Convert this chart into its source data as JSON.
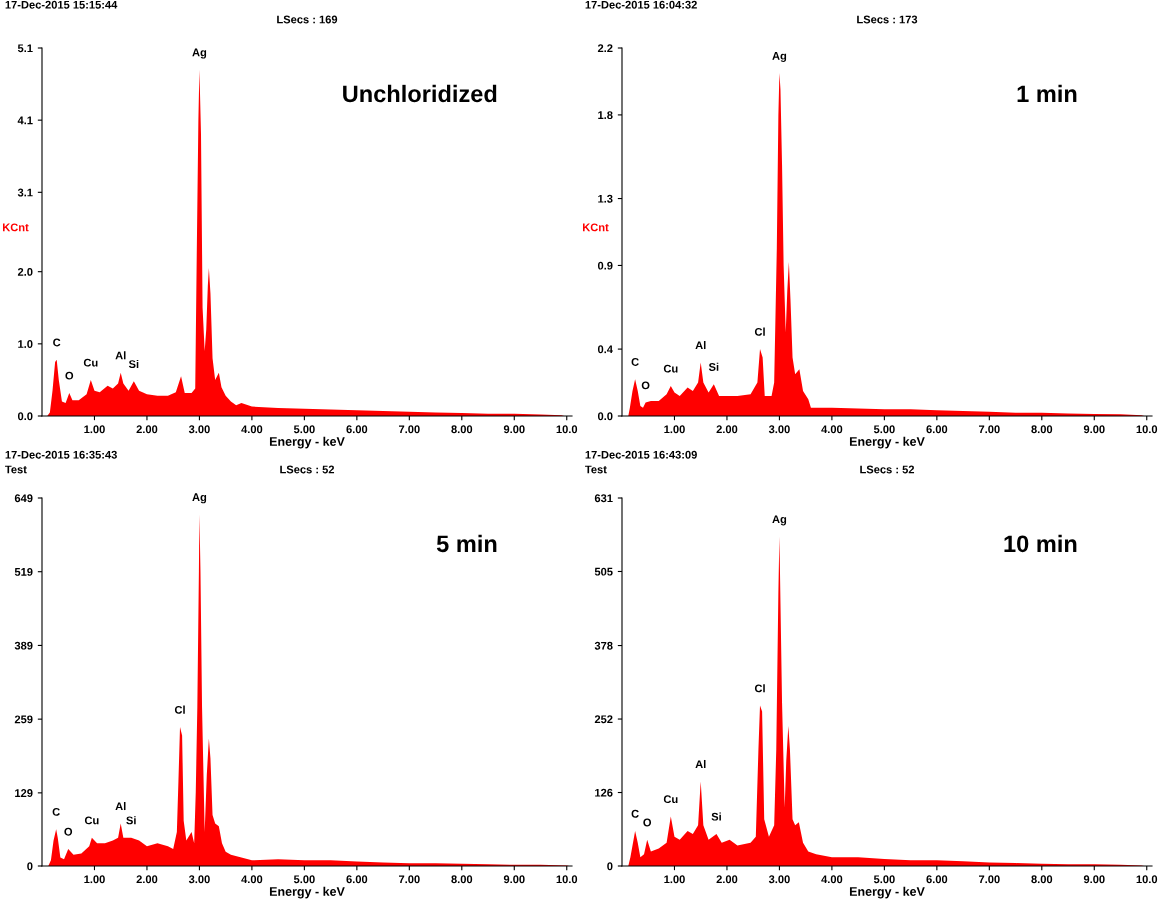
{
  "chart_data": [
    {
      "type": "area",
      "title": "17-Dec-2015 15:15:44",
      "subtitle": "LSecs : 169",
      "xlabel": "Energy - keV",
      "ylabel": "KCnt",
      "color": "#ff0000",
      "xlim": [
        0,
        10.1
      ],
      "xticks": [
        {
          "value": 1,
          "label": "1.00"
        },
        {
          "value": 2,
          "label": "2.00"
        },
        {
          "value": 3,
          "label": "3.00"
        },
        {
          "value": 4,
          "label": "4.00"
        },
        {
          "value": 5,
          "label": "5.00"
        },
        {
          "value": 6,
          "label": "6.00"
        },
        {
          "value": 7,
          "label": "7.00"
        },
        {
          "value": 8,
          "label": "8.00"
        },
        {
          "value": 9,
          "label": "9.00"
        },
        {
          "value": 10,
          "label": "10.0"
        }
      ],
      "ylim": [
        0,
        5.1
      ],
      "yticks": [
        {
          "value": 0,
          "label": "0.0"
        },
        {
          "value": 1.0,
          "label": "1.0"
        },
        {
          "value": 2.0,
          "label": "2.0"
        },
        3.1,
        4.1,
        5.1
      ],
      "x": [
        0.1,
        0.15,
        0.2,
        0.25,
        0.28,
        0.32,
        0.38,
        0.45,
        0.52,
        0.58,
        0.7,
        0.85,
        0.93,
        1.0,
        1.1,
        1.25,
        1.35,
        1.45,
        1.5,
        1.55,
        1.65,
        1.75,
        1.85,
        2.0,
        2.2,
        2.4,
        2.55,
        2.65,
        2.72,
        2.85,
        2.92,
        2.95,
        2.98,
        3.0,
        3.03,
        3.06,
        3.1,
        3.13,
        3.16,
        3.18,
        3.21,
        3.25,
        3.3,
        3.37,
        3.42,
        3.5,
        3.6,
        3.7,
        3.8,
        4.0,
        4.5,
        5.0,
        5.5,
        6.0,
        6.5,
        7.0,
        7.5,
        8.0,
        8.5,
        9.0,
        9.5,
        9.9,
        9.95
      ],
      "values": [
        0,
        0.05,
        0.35,
        0.75,
        0.78,
        0.5,
        0.2,
        0.18,
        0.32,
        0.22,
        0.22,
        0.3,
        0.5,
        0.35,
        0.33,
        0.42,
        0.38,
        0.45,
        0.6,
        0.45,
        0.35,
        0.48,
        0.35,
        0.3,
        0.28,
        0.28,
        0.33,
        0.55,
        0.32,
        0.32,
        0.38,
        2.3,
        4.1,
        4.8,
        3.9,
        1.5,
        0.9,
        1.2,
        1.8,
        2.05,
        1.7,
        0.8,
        0.5,
        0.6,
        0.4,
        0.28,
        0.2,
        0.15,
        0.18,
        0.13,
        0.11,
        0.1,
        0.09,
        0.08,
        0.07,
        0.06,
        0.05,
        0.04,
        0.03,
        0.03,
        0.02,
        0.01,
        0
      ],
      "annotations": [
        "Unchloridized",
        {
          "text": "Ag",
          "x": 3.0,
          "y": 4.8
        },
        {
          "text": "C",
          "x": 0.28,
          "y": 0.78
        },
        {
          "text": "O",
          "x": 0.52,
          "y": 0.32
        },
        {
          "text": "Cu",
          "x": 0.93,
          "y": 0.5
        },
        {
          "text": "Al",
          "x": 1.5,
          "y": 0.6
        },
        {
          "text": "Si",
          "x": 1.75,
          "y": 0.48
        }
      ]
    },
    {
      "type": "area",
      "title": "17-Dec-2015 16:04:32",
      "subtitle": "LSecs : 173",
      "xlabel": "Energy - keV",
      "ylabel": "KCnt",
      "color": "#ff0000",
      "xlim": [
        0,
        10.1
      ],
      "xticks": [
        {
          "value": 1,
          "label": "1.00"
        },
        {
          "value": 2,
          "label": "2.00"
        },
        {
          "value": 3,
          "label": "3.00"
        },
        {
          "value": 4,
          "label": "4.00"
        },
        {
          "value": 5,
          "label": "5.00"
        },
        {
          "value": 6,
          "label": "6.00"
        },
        {
          "value": 7,
          "label": "7.00"
        },
        {
          "value": 8,
          "label": "8.00"
        },
        {
          "value": 9,
          "label": "9.00"
        },
        {
          "value": 10,
          "label": "10.0"
        }
      ],
      "ylim": [
        0,
        2.2
      ],
      "yticks": [
        {
          "value": 0,
          "label": "0.0"
        },
        0.4,
        0.9,
        1.3,
        1.8,
        2.2
      ],
      "x": [
        0.12,
        0.15,
        0.2,
        0.25,
        0.3,
        0.35,
        0.4,
        0.45,
        0.55,
        0.7,
        0.85,
        0.93,
        1.0,
        1.1,
        1.25,
        1.35,
        1.45,
        1.5,
        1.55,
        1.65,
        1.75,
        1.85,
        2.0,
        2.2,
        2.45,
        2.58,
        2.63,
        2.68,
        2.72,
        2.85,
        2.9,
        2.95,
        2.98,
        3.0,
        3.02,
        3.05,
        3.08,
        3.12,
        3.15,
        3.18,
        3.21,
        3.25,
        3.3,
        3.38,
        3.45,
        3.55,
        3.6,
        3.8,
        4.0,
        4.5,
        5.0,
        5.5,
        6.0,
        6.5,
        7.0,
        7.5,
        8.0,
        8.5,
        9.0,
        9.5,
        9.9,
        9.95
      ],
      "values": [
        0,
        0.05,
        0.15,
        0.22,
        0.15,
        0.06,
        0.05,
        0.08,
        0.09,
        0.09,
        0.13,
        0.18,
        0.14,
        0.12,
        0.17,
        0.15,
        0.2,
        0.32,
        0.2,
        0.14,
        0.19,
        0.12,
        0.12,
        0.12,
        0.13,
        0.2,
        0.4,
        0.35,
        0.12,
        0.12,
        0.2,
        1.0,
        1.8,
        2.05,
        1.95,
        1.5,
        0.9,
        0.5,
        0.75,
        0.92,
        0.7,
        0.35,
        0.25,
        0.28,
        0.15,
        0.1,
        0.05,
        0.05,
        0.05,
        0.045,
        0.04,
        0.04,
        0.035,
        0.03,
        0.025,
        0.02,
        0.02,
        0.015,
        0.012,
        0.01,
        0.005,
        0
      ],
      "annotations": [
        "1 min",
        {
          "text": "Ag",
          "x": 3.0,
          "y": 2.05
        },
        {
          "text": "C",
          "x": 0.25,
          "y": 0.22
        },
        {
          "text": "O",
          "x": 0.45,
          "y": 0.08
        },
        {
          "text": "Cu",
          "x": 0.93,
          "y": 0.18
        },
        {
          "text": "Al",
          "x": 1.5,
          "y": 0.32
        },
        {
          "text": "Si",
          "x": 1.75,
          "y": 0.19
        },
        {
          "text": "Cl",
          "x": 2.63,
          "y": 0.4
        }
      ]
    },
    {
      "type": "area",
      "title": "17-Dec-2015 16:35:43",
      "subtitle": "LSecs : 52",
      "xlabel": "Energy - keV",
      "color": "#ff0000",
      "xlim": [
        0,
        10.1
      ],
      "xticks": [
        {
          "value": 1,
          "label": "1.00"
        },
        {
          "value": 2,
          "label": "2.00"
        },
        {
          "value": 3,
          "label": "3.00"
        },
        {
          "value": 4,
          "label": "4.00"
        },
        {
          "value": 5,
          "label": "5.00"
        },
        {
          "value": 6,
          "label": "6.00"
        },
        {
          "value": 7,
          "label": "7.00"
        },
        {
          "value": 8,
          "label": "8.00"
        },
        {
          "value": 9,
          "label": "9.00"
        },
        {
          "value": 10,
          "label": "10.0"
        }
      ],
      "ylim": [
        0,
        649
      ],
      "yticks": [
        0,
        129,
        259,
        389,
        519,
        649
      ],
      "x": [
        0.12,
        0.17,
        0.22,
        0.27,
        0.3,
        0.35,
        0.42,
        0.5,
        0.6,
        0.75,
        0.9,
        0.95,
        1.05,
        1.2,
        1.35,
        1.45,
        1.5,
        1.55,
        1.7,
        1.85,
        2.0,
        2.2,
        2.4,
        2.5,
        2.57,
        2.6,
        2.63,
        2.67,
        2.7,
        2.75,
        2.85,
        2.9,
        2.93,
        2.96,
        2.99,
        3.0,
        3.02,
        3.05,
        3.1,
        3.14,
        3.18,
        3.21,
        3.25,
        3.3,
        3.37,
        3.43,
        3.5,
        3.6,
        3.8,
        4.0,
        4.5,
        5.0,
        5.5,
        6.0,
        6.5,
        7.0,
        7.5,
        8.0,
        8.5,
        9.0,
        9.5,
        10.0,
        10.05
      ],
      "values": [
        0,
        10,
        45,
        65,
        50,
        15,
        12,
        30,
        20,
        22,
        35,
        50,
        40,
        40,
        45,
        50,
        75,
        50,
        50,
        45,
        35,
        40,
        35,
        30,
        60,
        150,
        245,
        230,
        80,
        45,
        60,
        40,
        130,
        280,
        520,
        620,
        520,
        280,
        60,
        160,
        225,
        190,
        90,
        75,
        70,
        40,
        25,
        20,
        15,
        10,
        12,
        10,
        10,
        8,
        6,
        5,
        5,
        4,
        3,
        2,
        2,
        1,
        0
      ],
      "annotations": [
        "5 min",
        "Test",
        {
          "text": "Ag",
          "x": 3.0,
          "y": 620
        },
        {
          "text": "C",
          "x": 0.27,
          "y": 65
        },
        {
          "text": "O",
          "x": 0.5,
          "y": 30
        },
        {
          "text": "Cu",
          "x": 0.95,
          "y": 50
        },
        {
          "text": "Al",
          "x": 1.5,
          "y": 75
        },
        {
          "text": "Si",
          "x": 1.7,
          "y": 50
        },
        {
          "text": "Cl",
          "x": 2.63,
          "y": 245
        }
      ]
    },
    {
      "type": "area",
      "title": "17-Dec-2015 16:43:09",
      "subtitle": "LSecs : 52",
      "xlabel": "Energy - keV",
      "color": "#ff0000",
      "xlim": [
        0,
        10.1
      ],
      "xticks": [
        {
          "value": 1,
          "label": "1.00"
        },
        {
          "value": 2,
          "label": "2.00"
        },
        {
          "value": 3,
          "label": "3.00"
        },
        {
          "value": 4,
          "label": "4.00"
        },
        {
          "value": 5,
          "label": "5.00"
        },
        {
          "value": 6,
          "label": "6.00"
        },
        {
          "value": 7,
          "label": "7.00"
        },
        {
          "value": 8,
          "label": "8.00"
        },
        {
          "value": 9,
          "label": "9.00"
        },
        {
          "value": 10,
          "label": "10.0"
        }
      ],
      "ylim": [
        0,
        631
      ],
      "yticks": [
        0,
        126,
        252,
        378,
        505,
        631
      ],
      "x": [
        0.12,
        0.16,
        0.22,
        0.25,
        0.3,
        0.35,
        0.42,
        0.48,
        0.55,
        0.7,
        0.85,
        0.93,
        1.0,
        1.1,
        1.25,
        1.35,
        1.45,
        1.5,
        1.55,
        1.65,
        1.8,
        1.9,
        2.05,
        2.2,
        2.45,
        2.55,
        2.6,
        2.63,
        2.67,
        2.71,
        2.8,
        2.9,
        2.94,
        2.98,
        3.0,
        3.02,
        3.05,
        3.1,
        3.13,
        3.17,
        3.2,
        3.25,
        3.3,
        3.37,
        3.45,
        3.55,
        3.7,
        4.0,
        4.5,
        5.0,
        5.5,
        6.0,
        6.5,
        7.0,
        7.5,
        8.0,
        8.5,
        9.0,
        9.5,
        9.9,
        9.95
      ],
      "values": [
        0,
        15,
        45,
        60,
        40,
        15,
        20,
        45,
        25,
        30,
        40,
        85,
        50,
        45,
        60,
        55,
        70,
        145,
        70,
        45,
        55,
        40,
        45,
        35,
        40,
        50,
        200,
        275,
        265,
        80,
        50,
        70,
        200,
        470,
        565,
        450,
        280,
        100,
        180,
        240,
        200,
        80,
        70,
        75,
        40,
        25,
        20,
        15,
        15,
        12,
        10,
        10,
        8,
        6,
        5,
        4,
        3,
        3,
        2,
        1,
        0
      ],
      "annotations": [
        "10 min",
        "Test",
        {
          "text": "Ag",
          "x": 3.0,
          "y": 565
        },
        {
          "text": "C",
          "x": 0.25,
          "y": 60
        },
        {
          "text": "O",
          "x": 0.48,
          "y": 45
        },
        {
          "text": "Cu",
          "x": 0.93,
          "y": 85
        },
        {
          "text": "Al",
          "x": 1.5,
          "y": 145
        },
        {
          "text": "Si",
          "x": 1.8,
          "y": 55
        },
        {
          "text": "Cl",
          "x": 2.63,
          "y": 275
        }
      ]
    }
  ]
}
